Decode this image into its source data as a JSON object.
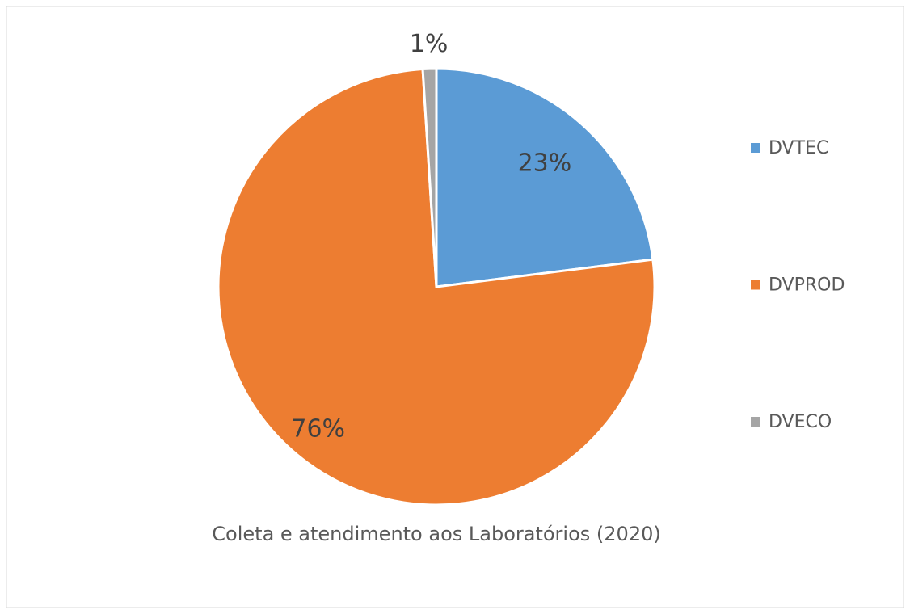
{
  "chart_data": {
    "type": "pie",
    "title": "Coleta e atendimento aos Laboratórios (2020)",
    "categories": [
      "DVTEC",
      "DVPROD",
      "DVECO"
    ],
    "values": [
      23,
      76,
      1
    ],
    "value_labels": [
      "23%",
      "76%",
      "1%"
    ],
    "colors": [
      "#5b9bd5",
      "#ed7d31",
      "#a5a5a5"
    ],
    "legend": "right"
  }
}
